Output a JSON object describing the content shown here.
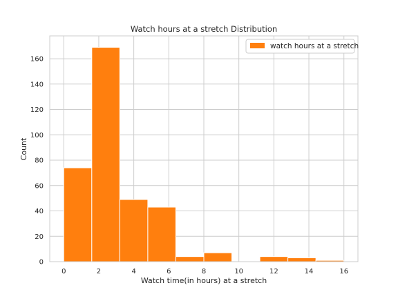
{
  "chart_data": {
    "type": "bar",
    "subtype": "histogram",
    "title": "Watch hours at a stretch Distribution",
    "xlabel": "Watch time(in hours) at a stretch",
    "ylabel": "Count",
    "xlim": [
      -0.8,
      16.8
    ],
    "ylim": [
      0,
      178
    ],
    "x_ticks": [
      0,
      2,
      4,
      6,
      8,
      10,
      12,
      14,
      16
    ],
    "x_tick_labels": [
      "0",
      "2",
      "4",
      "6",
      "8",
      "10",
      "12",
      "14",
      "16"
    ],
    "y_ticks": [
      0,
      20,
      40,
      60,
      80,
      100,
      120,
      140,
      160
    ],
    "y_tick_labels": [
      "0",
      "20",
      "40",
      "60",
      "80",
      "100",
      "120",
      "140",
      "160"
    ],
    "grid": true,
    "legend_position": "top-right",
    "series": [
      {
        "name": "watch hours at a stretch",
        "color": "#ff7f0e",
        "bins": [
          {
            "start": 0.0,
            "end": 1.6,
            "value": 74
          },
          {
            "start": 1.6,
            "end": 3.2,
            "value": 169
          },
          {
            "start": 3.2,
            "end": 4.8,
            "value": 49
          },
          {
            "start": 4.8,
            "end": 6.4,
            "value": 43
          },
          {
            "start": 6.4,
            "end": 8.0,
            "value": 4
          },
          {
            "start": 8.0,
            "end": 9.6,
            "value": 7
          },
          {
            "start": 9.6,
            "end": 11.2,
            "value": 0
          },
          {
            "start": 11.2,
            "end": 12.8,
            "value": 4
          },
          {
            "start": 12.8,
            "end": 14.4,
            "value": 3
          },
          {
            "start": 14.4,
            "end": 16.0,
            "value": 1
          }
        ]
      }
    ]
  }
}
